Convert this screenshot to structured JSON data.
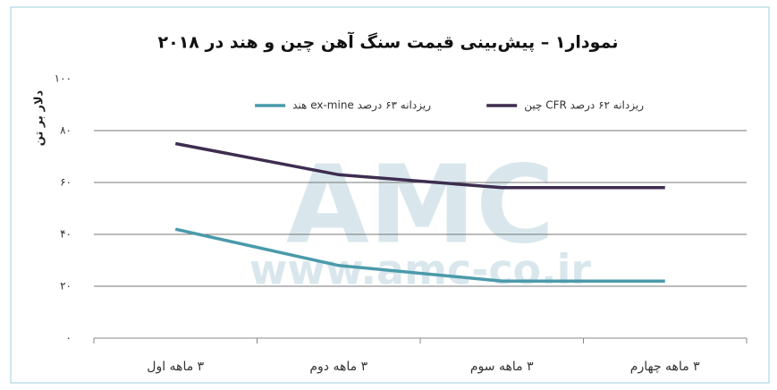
{
  "chart_data": {
    "type": "line",
    "title": "نمودار۱ – پیش‌بینی قیمت سنگ آهن چین و هند در ۲۰۱۸",
    "y_label": "دلار بر تن",
    "watermark": [
      "AMC",
      "www.amc-co.ir"
    ],
    "categories": [
      "۳ ماهه اول",
      "۳ ماهه دوم",
      "۳ ماهه سوم",
      "۳ ماهه چهارم"
    ],
    "series": [
      {
        "name": "ریزدانه ۶۲ درصد CFR چین",
        "color": "#3d2d4f",
        "values": [
          75,
          63,
          58,
          58
        ]
      },
      {
        "name": "ریزدانه ۶۳ درصد ex-mine هند",
        "color": "#4a9aaa",
        "values": [
          42,
          28,
          22,
          22
        ]
      }
    ],
    "ylim": [
      0,
      100
    ],
    "yticks": [
      {
        "value": 0,
        "label": "۰"
      },
      {
        "value": 20,
        "label": "۲۰"
      },
      {
        "value": 40,
        "label": "۴۰"
      },
      {
        "value": 60,
        "label": "۶۰"
      },
      {
        "value": 80,
        "label": "۸۰"
      },
      {
        "value": 100,
        "label": "۱۰۰"
      }
    ],
    "grid": true
  }
}
